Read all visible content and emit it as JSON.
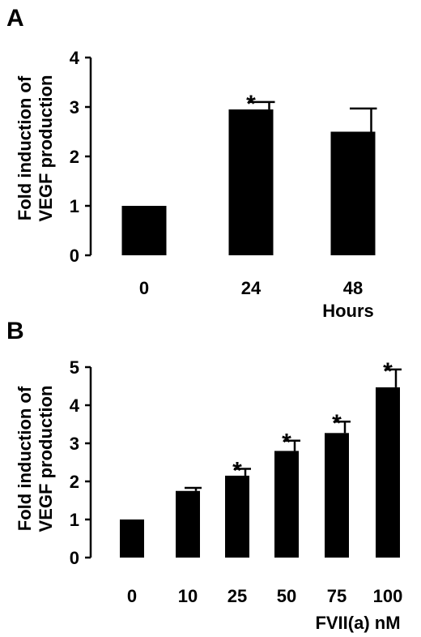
{
  "chart_data": [
    {
      "panel": "A",
      "type": "bar",
      "categories": [
        "0",
        "24",
        "48"
      ],
      "values": [
        1.0,
        2.95,
        2.5
      ],
      "errors": [
        0.0,
        0.15,
        0.47
      ],
      "significant": [
        "",
        "*",
        ""
      ],
      "ylabel_line1": "Fold induction of",
      "ylabel_line2": "VEGF production",
      "xlabel": "Hours",
      "ylim": [
        0,
        4
      ],
      "yticks": [
        "0",
        "1",
        "2",
        "3",
        "4"
      ],
      "grid": false,
      "bar_color": "#000000"
    },
    {
      "panel": "B",
      "type": "bar",
      "categories": [
        "0",
        "10",
        "25",
        "50",
        "75",
        "100"
      ],
      "values": [
        1.0,
        1.75,
        2.15,
        2.8,
        3.27,
        4.47
      ],
      "errors": [
        0.0,
        0.08,
        0.18,
        0.27,
        0.3,
        0.47
      ],
      "significant": [
        "",
        "",
        "*",
        "*",
        "*",
        "*"
      ],
      "ylabel_line1": "Fold induction of",
      "ylabel_line2": "VEGF production",
      "xlabel": "FVII(a) nM",
      "ylim": [
        0,
        5
      ],
      "yticks": [
        "0",
        "1",
        "2",
        "3",
        "4",
        "5"
      ],
      "grid": false,
      "bar_color": "#000000"
    }
  ]
}
